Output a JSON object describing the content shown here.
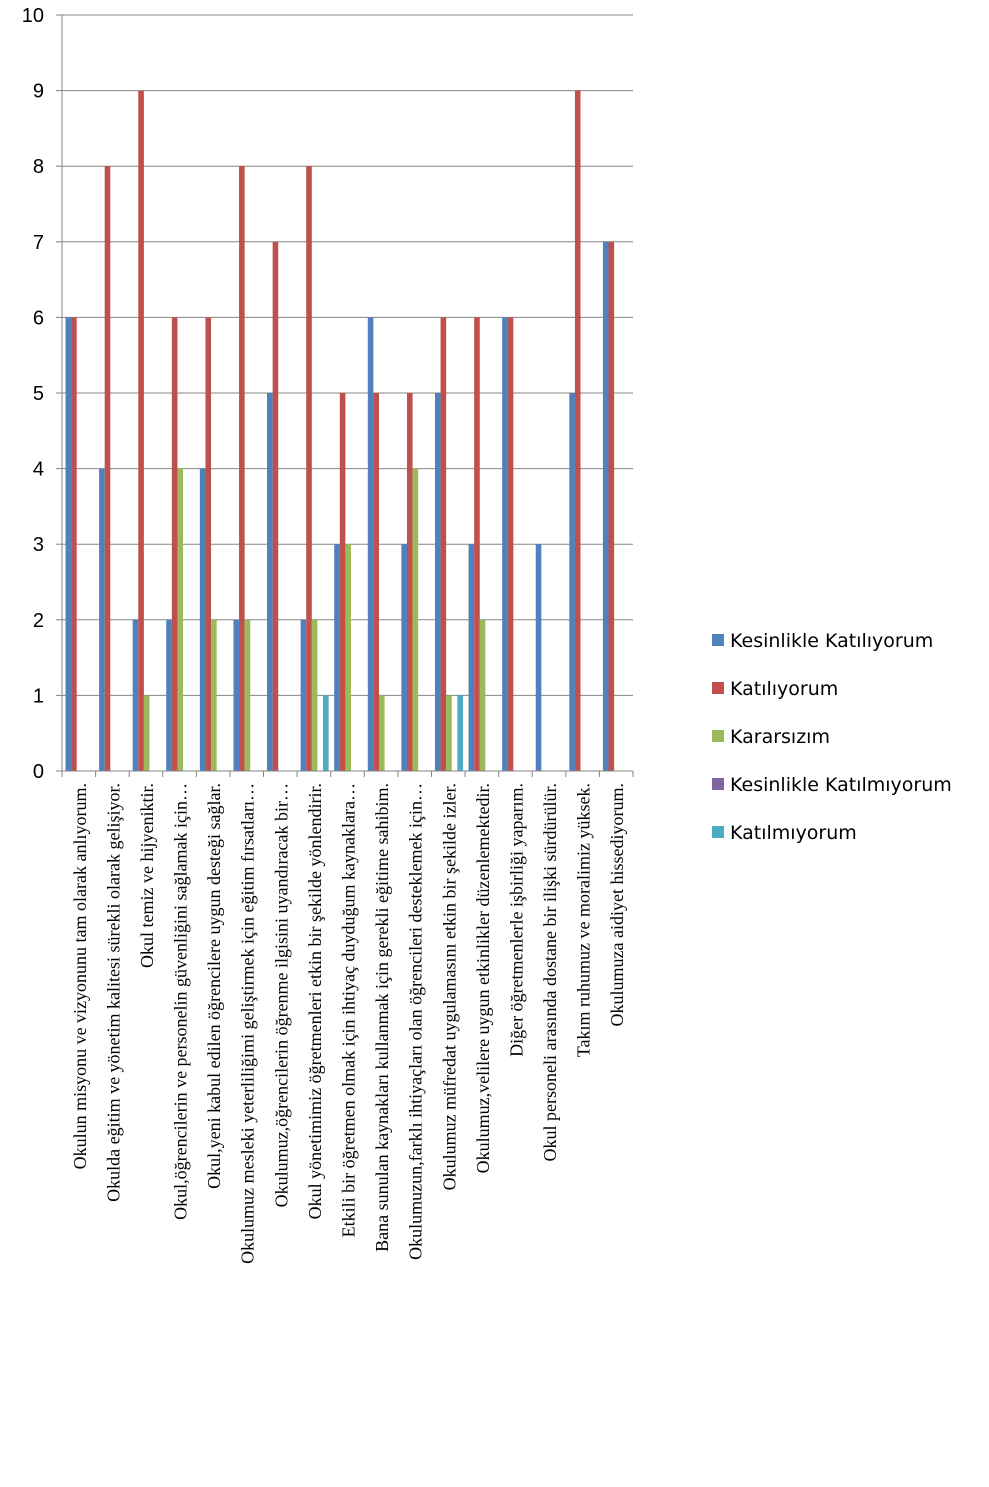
{
  "chart_data": {
    "type": "bar",
    "title": "",
    "xlabel": "",
    "ylabel": "",
    "ylim": [
      0,
      10
    ],
    "yticks": [
      0,
      1,
      2,
      3,
      4,
      5,
      6,
      7,
      8,
      9,
      10
    ],
    "grid": true,
    "legend_position": "right",
    "categories": [
      "Okulun misyonu ve vizyonunu tam olarak anlıyorum.",
      "Okulda eğitim ve yönetim kalitesi sürekli olarak gelişiyor.",
      "Okul temiz ve hijyeniktir.",
      "Okul,öğrencilerin ve personelin güvenliğini sağlamak için…",
      "Okul,yeni kabul edilen öğrencilere uygun desteği sağlar.",
      "Okulumuz mesleki yeterliliğimi geliştirmek için eğitim fırsatları…",
      "Okulumuz,öğrencilerin öğrenme ilgisini uyandıracak bir…",
      "Okul yönetimimiz öğretmenleri etkin bir şekilde yönlendirir.",
      "Etkili bir öğretmen olmak için ihtiyaç duyduğum kaynaklara…",
      "Bana sunulan kaynakları kullanmak için gerekli eğitime sahibim.",
      "Okulumuzun,farklı ihtiyaçları olan öğrencileri desteklemek için…",
      "Okulumuz müfredat uygulamasını etkin bir şekilde izler.",
      "Okulumuz,velilere uygun etkinlikler düzenlemektedir.",
      "Diğer öğretmenlerle işbirliği yaparım.",
      "Okul personeli arasında dostane bir ilişki sürdürülür.",
      "Takım ruhumuz ve moralimiz yüksek.",
      "Okulumuza aidiyet hissediyorum."
    ],
    "series": [
      {
        "name": "Kesinlikle Katılıyorum",
        "color": "#4F81BD",
        "values": [
          6,
          4,
          2,
          2,
          4,
          2,
          5,
          2,
          3,
          6,
          3,
          5,
          3,
          6,
          3,
          5,
          7
        ]
      },
      {
        "name": "Katılıyorum",
        "color": "#C0504D",
        "values": [
          6,
          8,
          9,
          6,
          6,
          8,
          7,
          8,
          5,
          5,
          5,
          6,
          6,
          6,
          0,
          9,
          7
        ]
      },
      {
        "name": "Kararsızım",
        "color": "#9BBB59",
        "values": [
          0,
          0,
          1,
          4,
          2,
          2,
          0,
          2,
          3,
          1,
          4,
          1,
          2,
          0,
          0,
          0,
          0
        ]
      },
      {
        "name": "Kesinlikle Katılmıyorum",
        "color": "#8064A2",
        "values": [
          0,
          0,
          0,
          0,
          0,
          0,
          0,
          0,
          0,
          0,
          0,
          0,
          0,
          0,
          0,
          0,
          0
        ]
      },
      {
        "name": "Katılmıyorum",
        "color": "#4BACC6",
        "values": [
          0,
          0,
          0,
          0,
          0,
          0,
          0,
          1,
          0,
          0,
          0,
          1,
          0,
          0,
          0,
          0,
          0
        ]
      }
    ]
  }
}
